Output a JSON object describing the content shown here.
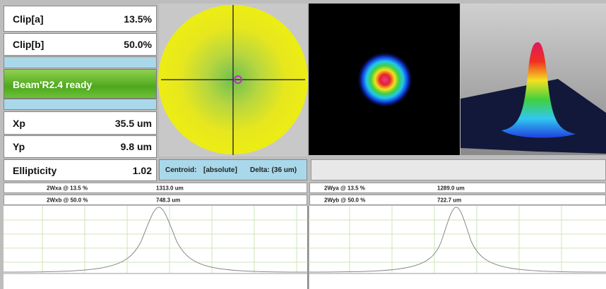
{
  "panel": {
    "rows": [
      {
        "label": "Clip[a]",
        "value": "13.5%"
      },
      {
        "label": "Clip[b]",
        "value": "50.0%"
      },
      {
        "label": "Xp",
        "value": "35.5 um"
      },
      {
        "label": "Yp",
        "value": "9.8 um"
      },
      {
        "label": "Ellipticity",
        "value": "1.02"
      }
    ],
    "status": "Beam'R2.4 ready"
  },
  "centroid": {
    "label": "Centroid:",
    "mode": "[absolute]",
    "delta": "Delta: (36 um)"
  },
  "profiles": [
    {
      "rows": [
        {
          "label": "2Wxa @ 13.5 %",
          "value": "1313.0 um"
        },
        {
          "label": "2Wxb @ 50.0 %",
          "value": "748.3 um"
        }
      ]
    },
    {
      "rows": [
        {
          "label": "2Wya @ 13.5 %",
          "value": "1289.0 um"
        },
        {
          "label": "2Wyb @ 50.0 %",
          "value": "722.7 um"
        }
      ]
    }
  ]
}
